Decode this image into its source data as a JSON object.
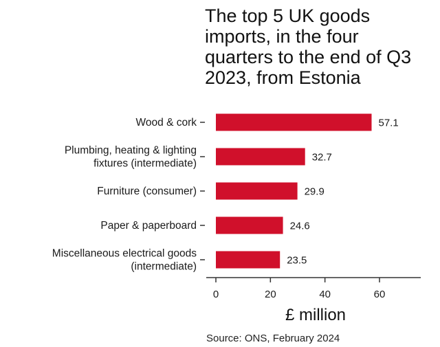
{
  "chart_data": {
    "type": "bar",
    "orientation": "horizontal",
    "title": "The top 5 UK goods imports, in the four quarters to the end of Q3 2023, from Estonia",
    "categories": [
      [
        "Wood & cork"
      ],
      [
        "Plumbing, heating & lighting",
        "fixtures (intermediate)"
      ],
      [
        "Furniture (consumer)"
      ],
      [
        "Paper & paperboard"
      ],
      [
        "Miscellaneous electrical goods",
        "(intermediate)"
      ]
    ],
    "values": [
      57.1,
      32.7,
      29.9,
      24.6,
      23.5
    ],
    "value_labels": [
      "57.1",
      "32.7",
      "29.9",
      "24.6",
      "23.5"
    ],
    "xlabel": "£ million",
    "ylabel": "",
    "xlim": [
      0,
      80
    ],
    "xticks": [
      0,
      20,
      40,
      60
    ],
    "grid": false,
    "legend": "none",
    "bar_color": "#d0102b"
  },
  "source": "Source: ONS, February 2024"
}
